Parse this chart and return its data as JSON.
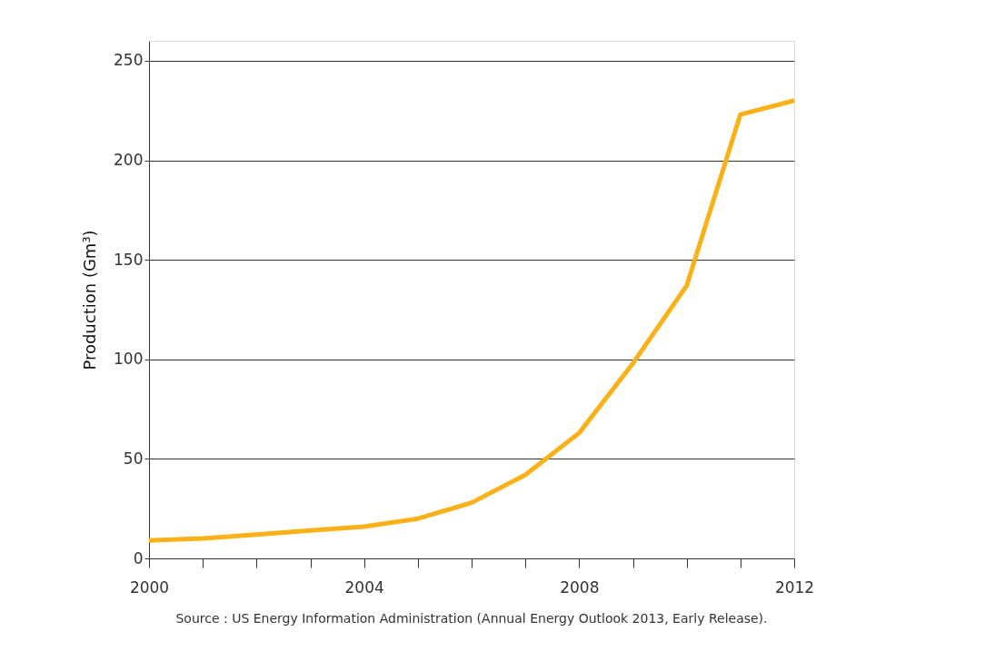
{
  "chart_data": {
    "type": "line",
    "ylabel": "Production (Gm³)",
    "x": [
      2000,
      2001,
      2002,
      2003,
      2004,
      2005,
      2006,
      2007,
      2008,
      2009,
      2010,
      2011,
      2012
    ],
    "series": [
      {
        "color": "#f9b117",
        "values": [
          9,
          10,
          12,
          14,
          16,
          20,
          28,
          42,
          63,
          98,
          137,
          223,
          230
        ]
      }
    ],
    "xlim": [
      2000,
      2012
    ],
    "xticks": [
      2000,
      {
        "value": 2001,
        "label": null
      },
      {
        "value": 2002,
        "label": null
      },
      {
        "value": 2003,
        "label": null
      },
      2004,
      {
        "value": 2005,
        "label": null
      },
      {
        "value": 2006,
        "label": null
      },
      {
        "value": 2007,
        "label": null
      },
      2008,
      {
        "value": 2009,
        "label": null
      },
      {
        "value": 2010,
        "label": null
      },
      {
        "value": 2011,
        "label": null
      },
      2012
    ],
    "ylim": [
      0,
      260
    ],
    "yticks": [
      0,
      50,
      100,
      150,
      200,
      250
    ],
    "grid": "y",
    "marker": "none",
    "line_style": "solid",
    "annotations": [
      "Source : US Energy Information Administration (Annual Energy Outlook 2013, Early Release)."
    ]
  }
}
